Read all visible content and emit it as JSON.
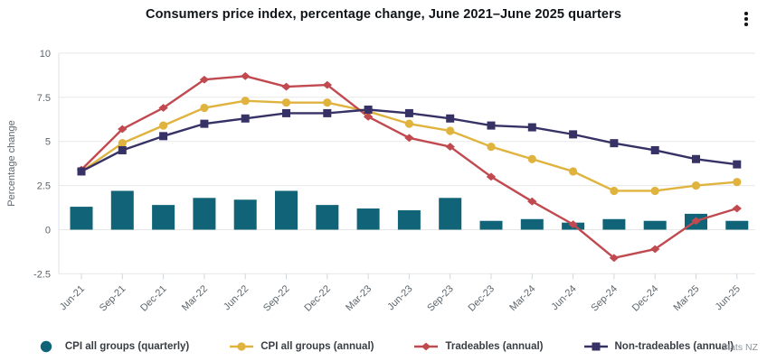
{
  "header": {
    "title": "Consumers price index, percentage change, June 2021–June 2025 quarters",
    "menu_icon": "kebab-menu"
  },
  "chart_data": {
    "type": "bar",
    "subtype": "combo-bar-line",
    "title": "Consumers price index, percentage change, June 2021–June 2025 quarters",
    "xlabel": "",
    "ylabel": "Percentage change",
    "ylim": [
      -2.5,
      10
    ],
    "yticks": [
      10,
      7.5,
      5,
      2.5,
      0,
      -2.5
    ],
    "grid": true,
    "legend_position": "bottom",
    "categories": [
      "Jun-21",
      "Sep-21",
      "Dec-21",
      "Mar-22",
      "Jun-22",
      "Sep-22",
      "Dec-22",
      "Mar-23",
      "Jun-23",
      "Sep-23",
      "Dec-23",
      "Mar-24",
      "Jun-24",
      "Sep-24",
      "Dec-24",
      "Mar-25",
      "Jun-25"
    ],
    "series": [
      {
        "name": "CPI all groups (quarterly)",
        "type": "bar",
        "marker": "circle",
        "color": "#116478",
        "values": [
          1.3,
          2.2,
          1.4,
          1.8,
          1.7,
          2.2,
          1.4,
          1.2,
          1.1,
          1.8,
          0.5,
          0.6,
          0.4,
          0.6,
          0.5,
          0.9,
          0.5
        ]
      },
      {
        "name": "CPI all groups (annual)",
        "type": "line",
        "marker": "circle",
        "color": "#dfb33d",
        "values": [
          3.3,
          4.9,
          5.9,
          6.9,
          7.3,
          7.2,
          7.2,
          6.7,
          6.0,
          5.6,
          4.7,
          4.0,
          3.3,
          2.2,
          2.2,
          2.5,
          2.7
        ]
      },
      {
        "name": "Tradeables (annual)",
        "type": "line",
        "marker": "diamond",
        "color": "#c04a50",
        "values": [
          3.4,
          5.7,
          6.9,
          8.5,
          8.7,
          8.1,
          8.2,
          6.4,
          5.2,
          4.7,
          3.0,
          1.6,
          0.3,
          -1.6,
          -1.1,
          0.5,
          1.2
        ]
      },
      {
        "name": "Non-tradeables (annual)",
        "type": "line",
        "marker": "square",
        "color": "#373266",
        "values": [
          3.3,
          4.5,
          5.3,
          6.0,
          6.3,
          6.6,
          6.6,
          6.8,
          6.6,
          6.3,
          5.9,
          5.8,
          5.4,
          4.9,
          4.5,
          4.0,
          3.7
        ]
      }
    ]
  },
  "footer": {
    "source": "Stats NZ"
  }
}
